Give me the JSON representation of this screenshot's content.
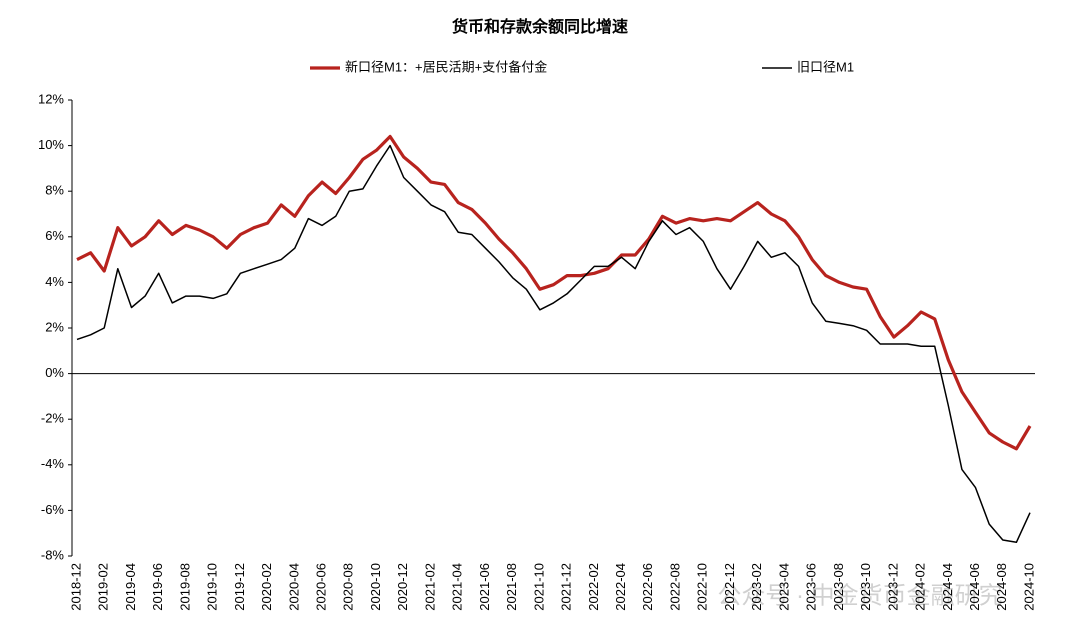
{
  "chart_data": {
    "type": "line",
    "title": "货币和存款余额同比增速",
    "categories": [
      "2018-12",
      null,
      "2019-02",
      null,
      "2019-04",
      null,
      "2019-06",
      null,
      "2019-08",
      null,
      "2019-10",
      null,
      "2019-12",
      null,
      "2020-02",
      null,
      "2020-04",
      null,
      "2020-06",
      null,
      "2020-08",
      null,
      "2020-10",
      null,
      "2020-12",
      null,
      "2021-02",
      null,
      "2021-04",
      null,
      "2021-06",
      null,
      "2021-08",
      null,
      "2021-10",
      null,
      "2021-12",
      null,
      "2022-02",
      null,
      "2022-04",
      null,
      "2022-06",
      null,
      "2022-08",
      null,
      "2022-10",
      null,
      "2022-12",
      null,
      "2023-02",
      null,
      "2023-04",
      null,
      "2023-06",
      null,
      "2023-08",
      null,
      "2023-10",
      null,
      "2023-12",
      null,
      "2024-02",
      null,
      "2024-04",
      null,
      "2024-06",
      null,
      "2024-08",
      null,
      "2024-10"
    ],
    "series": [
      {
        "name": "新口径M1：+居民活期+支付备付金",
        "color": "#b8231e",
        "width": 3.2,
        "values": [
          5.0,
          5.3,
          4.5,
          6.4,
          5.6,
          6.0,
          6.7,
          6.1,
          6.5,
          6.3,
          6.0,
          5.5,
          6.1,
          6.4,
          6.6,
          7.4,
          6.9,
          7.8,
          8.4,
          7.9,
          8.6,
          9.4,
          9.8,
          10.4,
          9.5,
          9.0,
          8.4,
          8.3,
          7.5,
          7.2,
          6.6,
          5.9,
          5.3,
          4.6,
          3.7,
          3.9,
          4.3,
          4.3,
          4.4,
          4.6,
          5.2,
          5.2,
          5.9,
          6.9,
          6.6,
          6.8,
          6.7,
          6.8,
          6.7,
          7.1,
          7.5,
          7.0,
          6.7,
          6.0,
          5.0,
          4.3,
          4.0,
          3.8,
          3.7,
          2.5,
          1.6,
          2.1,
          2.7,
          2.4,
          0.6,
          -0.8,
          -1.7,
          -2.6,
          -3.0,
          -3.3,
          -2.3
        ]
      },
      {
        "name": "旧口径M1",
        "color": "#000000",
        "width": 1.5,
        "values": [
          1.5,
          1.7,
          2.0,
          4.6,
          2.9,
          3.4,
          4.4,
          3.1,
          3.4,
          3.4,
          3.3,
          3.5,
          4.4,
          4.6,
          4.8,
          5.0,
          5.5,
          6.8,
          6.5,
          6.9,
          8.0,
          8.1,
          9.1,
          10.0,
          8.6,
          8.0,
          7.4,
          7.1,
          6.2,
          6.1,
          5.5,
          4.9,
          4.2,
          3.7,
          2.8,
          3.1,
          3.5,
          4.1,
          4.7,
          4.7,
          5.1,
          4.6,
          5.8,
          6.7,
          6.1,
          6.4,
          5.8,
          4.6,
          3.7,
          4.7,
          5.8,
          5.1,
          5.3,
          4.7,
          3.1,
          2.3,
          2.2,
          2.1,
          1.9,
          1.3,
          1.3,
          1.3,
          1.2,
          1.2,
          -1.4,
          -4.2,
          -5.0,
          -6.6,
          -7.3,
          -7.4,
          -6.1
        ]
      }
    ],
    "ylim": [
      -8,
      12
    ],
    "yticks": [
      {
        "value": -8,
        "label": "-8%"
      },
      {
        "value": -6,
        "label": "-6%"
      },
      {
        "value": -4,
        "label": "-4%"
      },
      {
        "value": -2,
        "label": "-2%"
      },
      {
        "value": 0,
        "label": "0%"
      },
      {
        "value": 2,
        "label": "2%"
      },
      {
        "value": 4,
        "label": "4%"
      },
      {
        "value": 6,
        "label": "6%"
      },
      {
        "value": 8,
        "label": "8%"
      },
      {
        "value": 10,
        "label": "10%"
      },
      {
        "value": 12,
        "label": "12%"
      }
    ],
    "grid": false,
    "annotations": [
      "公众号 · 中金货币金融研究"
    ]
  }
}
